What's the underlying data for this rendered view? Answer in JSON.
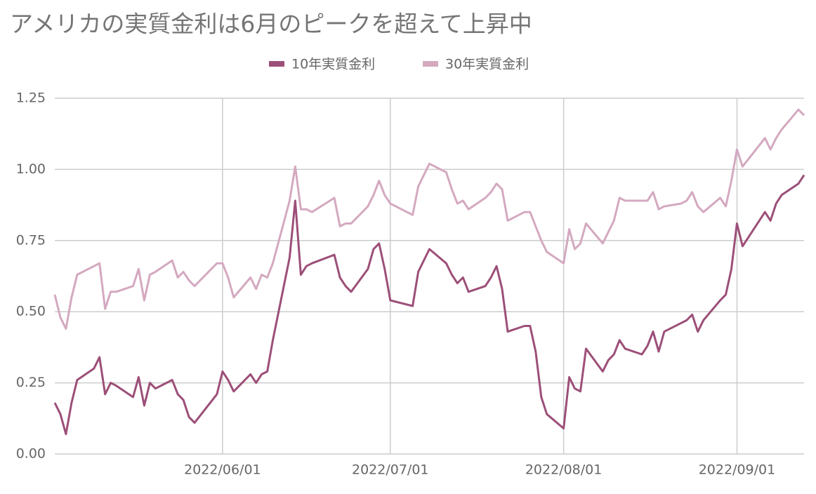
{
  "chart_data": {
    "type": "line",
    "title": "アメリカの実質金利は6月のピークを超えて上昇中",
    "x": [
      "2022/05/02",
      "2022/05/03",
      "2022/05/04",
      "2022/05/05",
      "2022/05/06",
      "2022/05/09",
      "2022/05/10",
      "2022/05/11",
      "2022/05/12",
      "2022/05/13",
      "2022/05/16",
      "2022/05/17",
      "2022/05/18",
      "2022/05/19",
      "2022/05/20",
      "2022/05/23",
      "2022/05/24",
      "2022/05/25",
      "2022/05/26",
      "2022/05/27",
      "2022/05/31",
      "2022/06/01",
      "2022/06/02",
      "2022/06/03",
      "2022/06/06",
      "2022/06/07",
      "2022/06/08",
      "2022/06/09",
      "2022/06/10",
      "2022/06/13",
      "2022/06/14",
      "2022/06/15",
      "2022/06/16",
      "2022/06/17",
      "2022/06/21",
      "2022/06/22",
      "2022/06/23",
      "2022/06/24",
      "2022/06/27",
      "2022/06/28",
      "2022/06/29",
      "2022/06/30",
      "2022/07/01",
      "2022/07/05",
      "2022/07/06",
      "2022/07/08",
      "2022/07/11",
      "2022/07/12",
      "2022/07/13",
      "2022/07/14",
      "2022/07/15",
      "2022/07/18",
      "2022/07/19",
      "2022/07/20",
      "2022/07/21",
      "2022/07/22",
      "2022/07/25",
      "2022/07/26",
      "2022/07/27",
      "2022/07/28",
      "2022/07/29",
      "2022/08/01",
      "2022/08/02",
      "2022/08/03",
      "2022/08/04",
      "2022/08/05",
      "2022/08/08",
      "2022/08/09",
      "2022/08/10",
      "2022/08/11",
      "2022/08/12",
      "2022/08/15",
      "2022/08/16",
      "2022/08/17",
      "2022/08/18",
      "2022/08/19",
      "2022/08/22",
      "2022/08/23",
      "2022/08/24",
      "2022/08/25",
      "2022/08/26",
      "2022/08/29",
      "2022/08/30",
      "2022/08/31",
      "2022/09/01",
      "2022/09/02",
      "2022/09/06",
      "2022/09/07",
      "2022/09/08",
      "2022/09/09",
      "2022/09/12",
      "2022/09/13"
    ],
    "series": [
      {
        "name": "10年実質金利",
        "color": "#9c4f78",
        "values": [
          0.18,
          0.14,
          0.07,
          0.18,
          0.26,
          0.3,
          0.34,
          0.21,
          0.25,
          0.24,
          0.2,
          0.27,
          0.17,
          0.25,
          0.23,
          0.26,
          0.21,
          0.19,
          0.13,
          0.11,
          0.21,
          0.29,
          0.26,
          0.22,
          0.28,
          0.25,
          0.28,
          0.29,
          0.4,
          0.69,
          0.89,
          0.63,
          0.66,
          0.67,
          0.7,
          0.62,
          0.59,
          0.57,
          0.65,
          0.72,
          0.74,
          0.65,
          0.54,
          0.52,
          0.64,
          0.72,
          0.67,
          0.63,
          0.6,
          0.62,
          0.57,
          0.59,
          0.62,
          0.66,
          0.58,
          0.43,
          0.45,
          0.45,
          0.36,
          0.2,
          0.14,
          0.09,
          0.27,
          0.23,
          0.22,
          0.37,
          0.29,
          0.33,
          0.35,
          0.4,
          0.37,
          0.35,
          0.38,
          0.43,
          0.36,
          0.43,
          0.46,
          0.47,
          0.49,
          0.43,
          0.47,
          0.54,
          0.56,
          0.65,
          0.81,
          0.73,
          0.85,
          0.82,
          0.88,
          0.91,
          0.95,
          0.98
        ]
      },
      {
        "name": "30年実質金利",
        "color": "#d4a9c0",
        "values": [
          0.56,
          0.48,
          0.44,
          0.55,
          0.63,
          0.66,
          0.67,
          0.51,
          0.57,
          0.57,
          0.59,
          0.65,
          0.54,
          0.63,
          0.64,
          0.68,
          0.62,
          0.64,
          0.61,
          0.59,
          0.67,
          0.67,
          0.62,
          0.55,
          0.62,
          0.58,
          0.63,
          0.62,
          0.67,
          0.89,
          1.01,
          0.86,
          0.86,
          0.85,
          0.9,
          0.8,
          0.81,
          0.81,
          0.87,
          0.91,
          0.96,
          0.91,
          0.88,
          0.84,
          0.94,
          1.02,
          0.99,
          0.93,
          0.88,
          0.89,
          0.86,
          0.9,
          0.92,
          0.95,
          0.93,
          0.82,
          0.85,
          0.85,
          0.8,
          0.75,
          0.71,
          0.67,
          0.79,
          0.72,
          0.74,
          0.81,
          0.74,
          0.78,
          0.82,
          0.9,
          0.89,
          0.89,
          0.89,
          0.92,
          0.86,
          0.87,
          0.88,
          0.89,
          0.92,
          0.87,
          0.85,
          0.9,
          0.87,
          0.96,
          1.07,
          1.01,
          1.11,
          1.07,
          1.11,
          1.14,
          1.21,
          1.19
        ]
      }
    ],
    "xlim": [
      "2022/05/02",
      "2022/09/13"
    ],
    "xticks": [
      "2022/06/01",
      "2022/07/01",
      "2022/08/01",
      "2022/09/01"
    ],
    "ylim": [
      0,
      1.25
    ],
    "yticks": [
      {
        "value": 0,
        "label": "0.00"
      },
      {
        "value": 0.25,
        "label": "0.25"
      },
      {
        "value": 0.5,
        "label": "0.50"
      },
      {
        "value": 0.75,
        "label": "0.75"
      },
      {
        "value": 1,
        "label": "1.00"
      },
      {
        "value": 1.25,
        "label": "1.25"
      }
    ],
    "grid": true,
    "legend": "top"
  }
}
